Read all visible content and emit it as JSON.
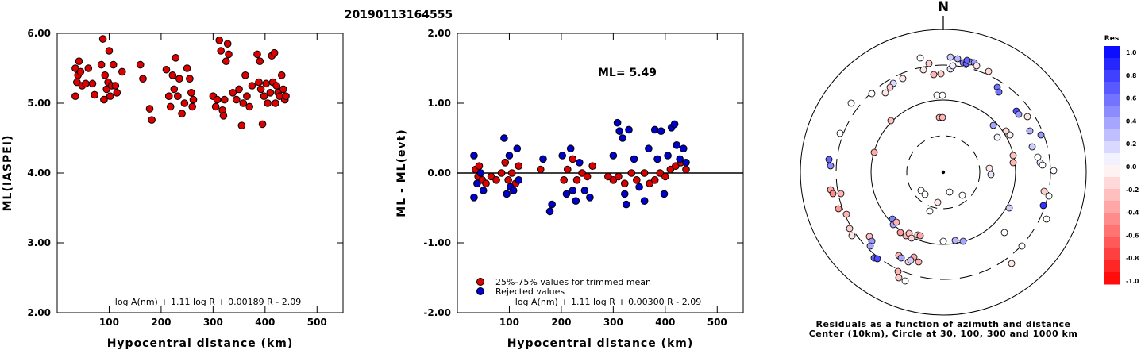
{
  "title": "20190113164555",
  "chart_data": [
    {
      "type": "scatter",
      "xlabel": "Hypocentral distance (km)",
      "ylabel": "ML(IASPEI)",
      "xlim": [
        0,
        550
      ],
      "ylim": [
        2.0,
        6.0
      ],
      "xticks": [
        "100",
        "200",
        "300",
        "400",
        "500"
      ],
      "yticks": [
        "2.00",
        "3.00",
        "4.00",
        "5.00",
        "6.00"
      ],
      "formula": "log A(nm) + 1.11 log R + 0.00189 R - 2.09",
      "series": [
        {
          "color": "#dd0000",
          "points": [
            [
              35,
              5.5
            ],
            [
              35,
              5.1
            ],
            [
              38,
              5.3
            ],
            [
              40,
              5.4
            ],
            [
              42,
              5.6
            ],
            [
              45,
              5.45
            ],
            [
              48,
              5.25
            ],
            [
              55,
              5.28
            ],
            [
              60,
              5.5
            ],
            [
              68,
              5.28
            ],
            [
              72,
              5.12
            ],
            [
              85,
              5.55
            ],
            [
              88,
              5.92
            ],
            [
              90,
              5.05
            ],
            [
              92,
              5.4
            ],
            [
              95,
              5.2
            ],
            [
              98,
              5.3
            ],
            [
              100,
              5.75
            ],
            [
              102,
              5.1
            ],
            [
              105,
              5.25
            ],
            [
              108,
              5.55
            ],
            [
              112,
              5.25
            ],
            [
              115,
              5.15
            ],
            [
              125,
              5.45
            ],
            [
              160,
              5.55
            ],
            [
              165,
              5.35
            ],
            [
              178,
              4.92
            ],
            [
              182,
              4.76
            ],
            [
              210,
              5.48
            ],
            [
              215,
              5.1
            ],
            [
              218,
              4.95
            ],
            [
              222,
              5.4
            ],
            [
              225,
              5.2
            ],
            [
              228,
              5.65
            ],
            [
              232,
              5.1
            ],
            [
              235,
              5.35
            ],
            [
              240,
              4.85
            ],
            [
              245,
              5.0
            ],
            [
              250,
              5.5
            ],
            [
              255,
              5.35
            ],
            [
              258,
              5.15
            ],
            [
              260,
              4.95
            ],
            [
              262,
              5.05
            ],
            [
              300,
              5.1
            ],
            [
              305,
              4.95
            ],
            [
              308,
              5.05
            ],
            [
              312,
              5.9
            ],
            [
              315,
              5.75
            ],
            [
              318,
              4.9
            ],
            [
              320,
              4.82
            ],
            [
              322,
              5.05
            ],
            [
              325,
              5.6
            ],
            [
              328,
              5.85
            ],
            [
              330,
              5.7
            ],
            [
              338,
              5.15
            ],
            [
              345,
              5.05
            ],
            [
              350,
              5.2
            ],
            [
              355,
              4.68
            ],
            [
              358,
              5.0
            ],
            [
              362,
              5.4
            ],
            [
              365,
              5.1
            ],
            [
              370,
              4.95
            ],
            [
              375,
              5.25
            ],
            [
              385,
              5.7
            ],
            [
              388,
              5.3
            ],
            [
              390,
              5.6
            ],
            [
              392,
              5.2
            ],
            [
              395,
              4.7
            ],
            [
              398,
              5.1
            ],
            [
              402,
              5.28
            ],
            [
              405,
              5.0
            ],
            [
              410,
              5.15
            ],
            [
              413,
              5.68
            ],
            [
              415,
              5.3
            ],
            [
              418,
              5.72
            ],
            [
              420,
              5.0
            ],
            [
              422,
              5.25
            ],
            [
              425,
              5.15
            ],
            [
              428,
              5.1
            ],
            [
              432,
              5.4
            ],
            [
              435,
              5.2
            ],
            [
              438,
              5.05
            ],
            [
              440,
              5.1
            ]
          ]
        }
      ]
    },
    {
      "type": "scatter",
      "xlabel": "Hypocentral distance (km)",
      "ylabel": "ML - ML(evt)",
      "xlim": [
        0,
        550
      ],
      "ylim": [
        -2.0,
        2.0
      ],
      "xticks": [
        "100",
        "200",
        "300",
        "400",
        "500"
      ],
      "yticks": [
        "-2.00",
        "-1.00",
        "0.00",
        "1.00",
        "2.00"
      ],
      "annotation": "ML= 5.49",
      "formula": "log A(nm) + 1.11 log R + 0.00300 R - 2.09",
      "legend": [
        {
          "label": "25%-75% values for trimmed mean",
          "color": "#dd0000"
        },
        {
          "label": "Rejected values",
          "color": "#0000cc"
        }
      ],
      "series": [
        {
          "color": "#dd0000",
          "points": [
            [
              35,
              0.05
            ],
            [
              40,
              -0.05
            ],
            [
              42,
              0.1
            ],
            [
              48,
              -0.1
            ],
            [
              55,
              -0.15
            ],
            [
              65,
              -0.05
            ],
            [
              75,
              -0.1
            ],
            [
              85,
              0.0
            ],
            [
              92,
              0.15
            ],
            [
              98,
              -0.1
            ],
            [
              105,
              0.0
            ],
            [
              112,
              -0.15
            ],
            [
              118,
              0.1
            ],
            [
              160,
              0.05
            ],
            [
              205,
              -0.1
            ],
            [
              212,
              0.05
            ],
            [
              222,
              0.2
            ],
            [
              230,
              -0.1
            ],
            [
              240,
              0.0
            ],
            [
              250,
              -0.05
            ],
            [
              260,
              0.1
            ],
            [
              290,
              -0.05
            ],
            [
              300,
              -0.1
            ],
            [
              310,
              -0.05
            ],
            [
              322,
              -0.15
            ],
            [
              335,
              0.0
            ],
            [
              345,
              -0.1
            ],
            [
              360,
              0.0
            ],
            [
              370,
              -0.15
            ],
            [
              380,
              -0.1
            ],
            [
              390,
              0.0
            ],
            [
              400,
              -0.05
            ],
            [
              410,
              0.05
            ],
            [
              420,
              0.1
            ],
            [
              430,
              0.15
            ],
            [
              440,
              0.05
            ]
          ]
        },
        {
          "color": "#0000cc",
          "points": [
            [
              32,
              0.25
            ],
            [
              32,
              -0.35
            ],
            [
              38,
              -0.15
            ],
            [
              45,
              0.0
            ],
            [
              50,
              -0.25
            ],
            [
              90,
              0.5
            ],
            [
              95,
              -0.3
            ],
            [
              100,
              0.25
            ],
            [
              102,
              -0.2
            ],
            [
              108,
              -0.25
            ],
            [
              115,
              0.35
            ],
            [
              118,
              -0.1
            ],
            [
              165,
              0.2
            ],
            [
              178,
              -0.55
            ],
            [
              182,
              -0.45
            ],
            [
              202,
              0.25
            ],
            [
              210,
              -0.3
            ],
            [
              218,
              0.35
            ],
            [
              222,
              -0.25
            ],
            [
              228,
              -0.4
            ],
            [
              235,
              0.15
            ],
            [
              245,
              -0.25
            ],
            [
              255,
              -0.35
            ],
            [
              300,
              0.25
            ],
            [
              308,
              0.72
            ],
            [
              312,
              0.6
            ],
            [
              318,
              0.5
            ],
            [
              322,
              -0.3
            ],
            [
              325,
              -0.45
            ],
            [
              330,
              0.62
            ],
            [
              340,
              0.2
            ],
            [
              350,
              -0.2
            ],
            [
              360,
              -0.4
            ],
            [
              368,
              0.35
            ],
            [
              380,
              0.62
            ],
            [
              385,
              0.2
            ],
            [
              392,
              0.6
            ],
            [
              398,
              -0.3
            ],
            [
              405,
              0.25
            ],
            [
              412,
              0.65
            ],
            [
              418,
              0.7
            ],
            [
              422,
              0.4
            ],
            [
              428,
              0.2
            ],
            [
              435,
              0.35
            ],
            [
              440,
              0.15
            ]
          ]
        }
      ]
    }
  ],
  "polar": {
    "north_label": "N",
    "caption_line1": "Residuals as a function of azimuth and distance",
    "caption_line2": "Center (10km), Circle at 30, 100, 300 and 1000 km",
    "colorbar_title": "Res",
    "colorbar_ticks": [
      "1.0",
      "0.8",
      "0.6",
      "0.4",
      "0.2",
      "0.0",
      "-0.2",
      "-0.4",
      "-0.6",
      "-0.8",
      "-1.0"
    ]
  }
}
